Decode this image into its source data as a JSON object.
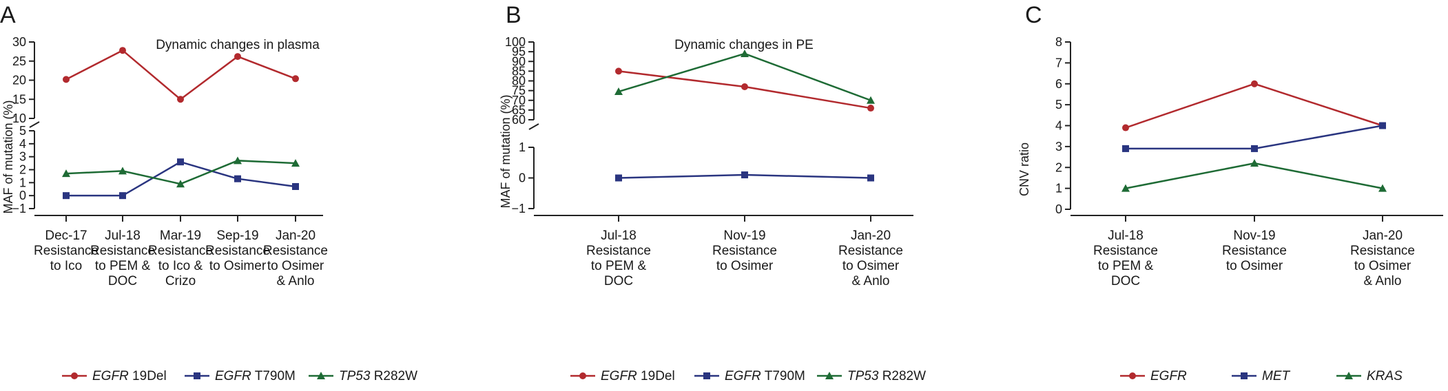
{
  "panels": [
    {
      "label": "A",
      "title": "Dynamic changes in plasma",
      "ylabel": "MAF of mutation (%)",
      "categories": [
        [
          "Dec-17",
          "Resistance",
          "to Ico"
        ],
        [
          "Jul-18",
          "Resistance",
          "to PEM &",
          "DOC"
        ],
        [
          "Mar-19",
          "Resistance",
          "to Ico &",
          "Crizo"
        ],
        [
          "Sep-19",
          "Resistance",
          "to Osimer"
        ],
        [
          "Jan-20",
          "Resistance",
          "to Osimer",
          "& Anlo"
        ]
      ],
      "legend": [
        {
          "gene": "EGFR",
          "suffix": " 19Del"
        },
        {
          "gene": "EGFR",
          "suffix": " T790M"
        },
        {
          "gene": "TP53",
          "suffix": " R282W"
        }
      ],
      "upper_axis": {
        "ylim": [
          10,
          30
        ],
        "ticks": [
          "10",
          "15",
          "20",
          "25",
          "30"
        ]
      },
      "lower_axis": {
        "ylim": [
          -1,
          5
        ],
        "ticks": [
          "−1",
          "0",
          "1",
          "2",
          "3",
          "4",
          "5"
        ]
      }
    },
    {
      "label": "B",
      "title": "Dynamic changes in PE",
      "ylabel": "MAF of mutation (%)",
      "categories": [
        [
          "Jul-18",
          "Resistance",
          "to PEM &",
          "DOC"
        ],
        [
          "Nov-19",
          "Resistance",
          "to Osimer"
        ],
        [
          "Jan-20",
          "Resistance",
          "to Osimer",
          "& Anlo"
        ]
      ],
      "legend": [
        {
          "gene": "EGFR",
          "suffix": " 19Del"
        },
        {
          "gene": "EGFR",
          "suffix": " T790M"
        },
        {
          "gene": "TP53",
          "suffix": " R282W"
        }
      ],
      "upper_axis": {
        "ylim": [
          60,
          100
        ],
        "ticks": [
          "60",
          "65",
          "70",
          "75",
          "80",
          "85",
          "90",
          "95",
          "100"
        ]
      },
      "lower_axis": {
        "ylim": [
          -1,
          1
        ],
        "ticks": [
          "−1",
          "0",
          "1"
        ]
      }
    },
    {
      "label": "C",
      "title": "",
      "ylabel": "CNV ratio",
      "categories": [
        [
          "Jul-18",
          "Resistance",
          "to PEM &",
          "DOC"
        ],
        [
          "Nov-19",
          "Resistance",
          "to Osimer"
        ],
        [
          "Jan-20",
          "Resistance",
          "to Osimer",
          "& Anlo"
        ]
      ],
      "legend": [
        {
          "gene": "EGFR",
          "suffix": ""
        },
        {
          "gene": "MET",
          "suffix": ""
        },
        {
          "gene": "KRAS",
          "suffix": ""
        }
      ],
      "axis": {
        "ylim": [
          0,
          8
        ],
        "ticks": [
          "0",
          "1",
          "2",
          "3",
          "4",
          "5",
          "6",
          "7",
          "8"
        ]
      }
    }
  ],
  "chart_data": [
    {
      "type": "line",
      "panel": "A",
      "title": "Dynamic changes in plasma",
      "ylabel": "MAF of mutation (%)",
      "y_axis_break": [
        5,
        10
      ],
      "categories": [
        "Dec-17 Resistance to Ico",
        "Jul-18 Resistance to PEM & DOC",
        "Mar-19 Resistance to Ico & Crizo",
        "Sep-19 Resistance to Osimer",
        "Jan-20 Resistance to Osimer & Anlo"
      ],
      "series": [
        {
          "name": "EGFR 19Del",
          "color": "#b22a2e",
          "marker": "circle",
          "values": [
            20.2,
            27.8,
            15.0,
            26.2,
            20.4
          ]
        },
        {
          "name": "EGFR T790M",
          "color": "#2a3580",
          "marker": "square",
          "values": [
            0,
            0,
            2.6,
            1.3,
            0.7
          ]
        },
        {
          "name": "TP53 R282W",
          "color": "#1e6b35",
          "marker": "triangle",
          "values": [
            1.7,
            1.9,
            0.9,
            2.7,
            2.5
          ]
        }
      ]
    },
    {
      "type": "line",
      "panel": "B",
      "title": "Dynamic changes in PE",
      "ylabel": "MAF of mutation (%)",
      "y_axis_break": [
        1,
        60
      ],
      "categories": [
        "Jul-18 Resistance to PEM & DOC",
        "Nov-19 Resistance to Osimer",
        "Jan-20 Resistance to Osimer & Anlo"
      ],
      "series": [
        {
          "name": "EGFR 19Del",
          "color": "#b22a2e",
          "marker": "circle",
          "values": [
            85,
            77,
            66
          ]
        },
        {
          "name": "EGFR T790M",
          "color": "#2a3580",
          "marker": "square",
          "values": [
            0,
            0.1,
            0
          ]
        },
        {
          "name": "TP53 R282W",
          "color": "#1e6b35",
          "marker": "triangle",
          "values": [
            74.5,
            94,
            70
          ]
        }
      ]
    },
    {
      "type": "line",
      "panel": "C",
      "ylabel": "CNV ratio",
      "ylim": [
        0,
        8
      ],
      "categories": [
        "Jul-18 Resistance to PEM & DOC",
        "Nov-19 Resistance to Osimer",
        "Jan-20 Resistance to Osimer & Anlo"
      ],
      "series": [
        {
          "name": "EGFR",
          "color": "#b22a2e",
          "marker": "circle",
          "values": [
            3.9,
            6.0,
            4.0
          ]
        },
        {
          "name": "MET",
          "color": "#2a3580",
          "marker": "square",
          "values": [
            2.9,
            2.9,
            4.0
          ]
        },
        {
          "name": "KRAS",
          "color": "#1e6b35",
          "marker": "triangle",
          "values": [
            1.0,
            2.2,
            1.0
          ]
        }
      ]
    }
  ]
}
